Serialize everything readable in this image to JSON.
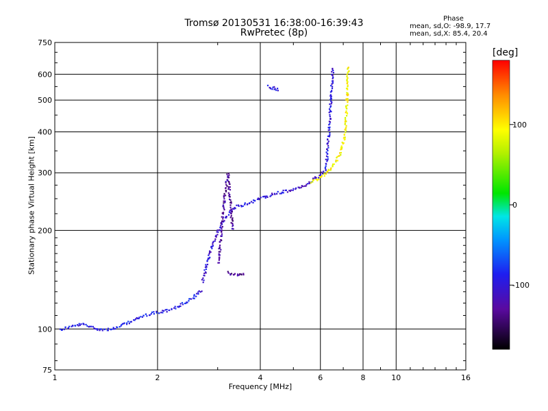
{
  "title": {
    "line1": "Tromsø 20130531 16:38:00-16:39:43",
    "line2": "RwPretec (8p)"
  },
  "phase_box": {
    "title": "Phase",
    "o_stats": "mean, sd,O: -98.9, 17.7",
    "x_stats": "mean, sd,X:  85.4, 20.4"
  },
  "colorbar": {
    "unit": "[deg]",
    "ticks": [
      "100",
      "0",
      "-100"
    ]
  },
  "chart_data": {
    "type": "scatter",
    "xlabel": "Frequency [MHz]",
    "ylabel": "Stationary phase Virtual Height [km]",
    "xscale": "log",
    "yscale": "log",
    "xlim": [
      1,
      16
    ],
    "ylim": [
      75,
      750
    ],
    "xticks": [
      1,
      2,
      4,
      6,
      8,
      10,
      16
    ],
    "xticklabels": [
      "1",
      "2",
      "4",
      "6",
      "8",
      "10",
      "16"
    ],
    "yticks": [
      75,
      100,
      200,
      300,
      400,
      500,
      600,
      750
    ],
    "yticklabels": [
      "75",
      "100",
      "200",
      "300",
      "400",
      "500",
      "600",
      "750"
    ],
    "grid": true,
    "colorscale": "phase in degrees, -180 (black/purple) to 180 (red)",
    "traces": [
      {
        "x": [
          1.03,
          1.1,
          1.2,
          1.3,
          1.4,
          1.5,
          1.6,
          1.7,
          1.8,
          1.9,
          2.0,
          2.1,
          2.2,
          2.3,
          2.4,
          2.5,
          2.6,
          2.7
        ],
        "y": [
          100,
          102,
          104,
          101,
          100,
          101,
          104,
          107,
          110,
          112,
          113,
          114,
          116,
          118,
          121,
          124,
          128,
          133
        ],
        "phase": -95
      },
      {
        "x": [
          2.7,
          2.8,
          2.9,
          3.0,
          3.1,
          3.2,
          3.3,
          3.4,
          3.6,
          3.8,
          4.0,
          4.2,
          4.4,
          4.6,
          4.8,
          5.0,
          5.2,
          5.4,
          5.6,
          5.8,
          6.0,
          6.2
        ],
        "y": [
          140,
          165,
          185,
          200,
          215,
          225,
          233,
          238,
          242,
          247,
          252,
          256,
          260,
          263,
          265,
          268,
          272,
          277,
          283,
          290,
          298,
          308
        ],
        "phase": -105
      },
      {
        "x": [
          6.2,
          6.25,
          6.3,
          6.35,
          6.4,
          6.45,
          6.5
        ],
        "y": [
          308,
          340,
          380,
          430,
          490,
          560,
          635
        ],
        "phase": -100
      },
      {
        "x": [
          5.6,
          5.9,
          6.2,
          6.5,
          6.8,
          7.0,
          7.1,
          7.15,
          7.2
        ],
        "y": [
          283,
          290,
          300,
          318,
          340,
          380,
          430,
          520,
          640
        ],
        "phase": 95
      },
      {
        "x": [
          3.0,
          3.05,
          3.1,
          3.15,
          3.2,
          3.25,
          3.3
        ],
        "y": [
          160,
          190,
          230,
          270,
          300,
          250,
          200
        ],
        "phase": -130
      },
      {
        "x": [
          3.2,
          3.3,
          3.4,
          3.5,
          3.6
        ],
        "y": [
          150,
          148,
          147,
          147,
          148
        ],
        "phase": -130
      },
      {
        "x": [
          4.2,
          4.3,
          4.4,
          4.5
        ],
        "y": [
          555,
          548,
          545,
          540
        ],
        "phase": -100
      }
    ]
  }
}
